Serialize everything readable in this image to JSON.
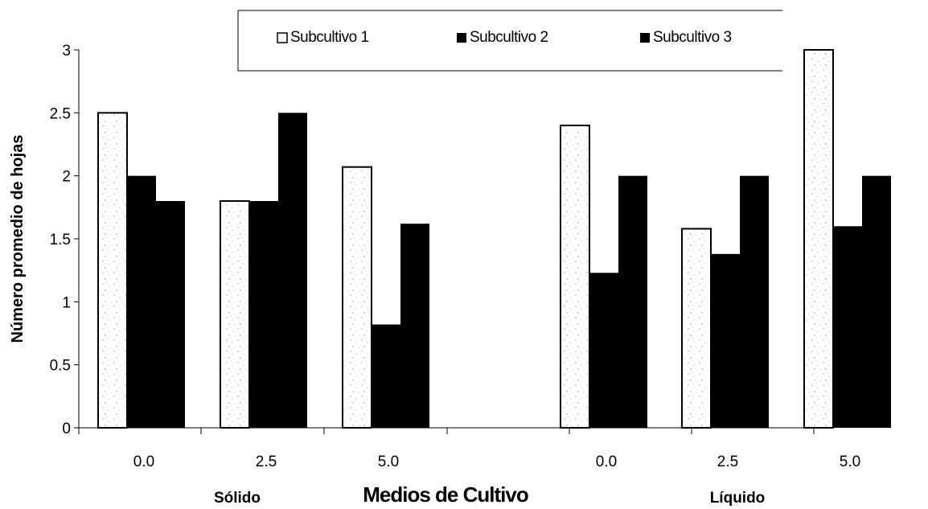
{
  "chart_data": {
    "type": "bar",
    "title": "",
    "xlabel": "Medios de Cultivo",
    "ylabel": "Número promedio de hojas",
    "ylim": [
      0,
      3
    ],
    "yticks": [
      "0",
      "0.5",
      "1",
      "1.5",
      "2",
      "2.5",
      "3"
    ],
    "groups": [
      "Sólido",
      "Líquido"
    ],
    "categories": [
      "0.0",
      "2.5",
      "5.0",
      "0.0",
      "2.5",
      "5.0"
    ],
    "series": [
      {
        "name": "Subcultivo 1",
        "values": [
          2.5,
          1.8,
          2.07,
          2.4,
          1.58,
          3.0
        ]
      },
      {
        "name": "Subcultivo 2",
        "values": [
          2.0,
          1.8,
          0.82,
          1.23,
          1.38,
          1.6
        ]
      },
      {
        "name": "Subcultivo 3",
        "values": [
          1.8,
          2.5,
          1.62,
          2.0,
          2.0,
          2.0
        ]
      }
    ],
    "colors": {
      "series1": "#ffffff",
      "series2": "#000000",
      "series3": "#000000"
    },
    "legend_position": "top",
    "grid": false
  }
}
